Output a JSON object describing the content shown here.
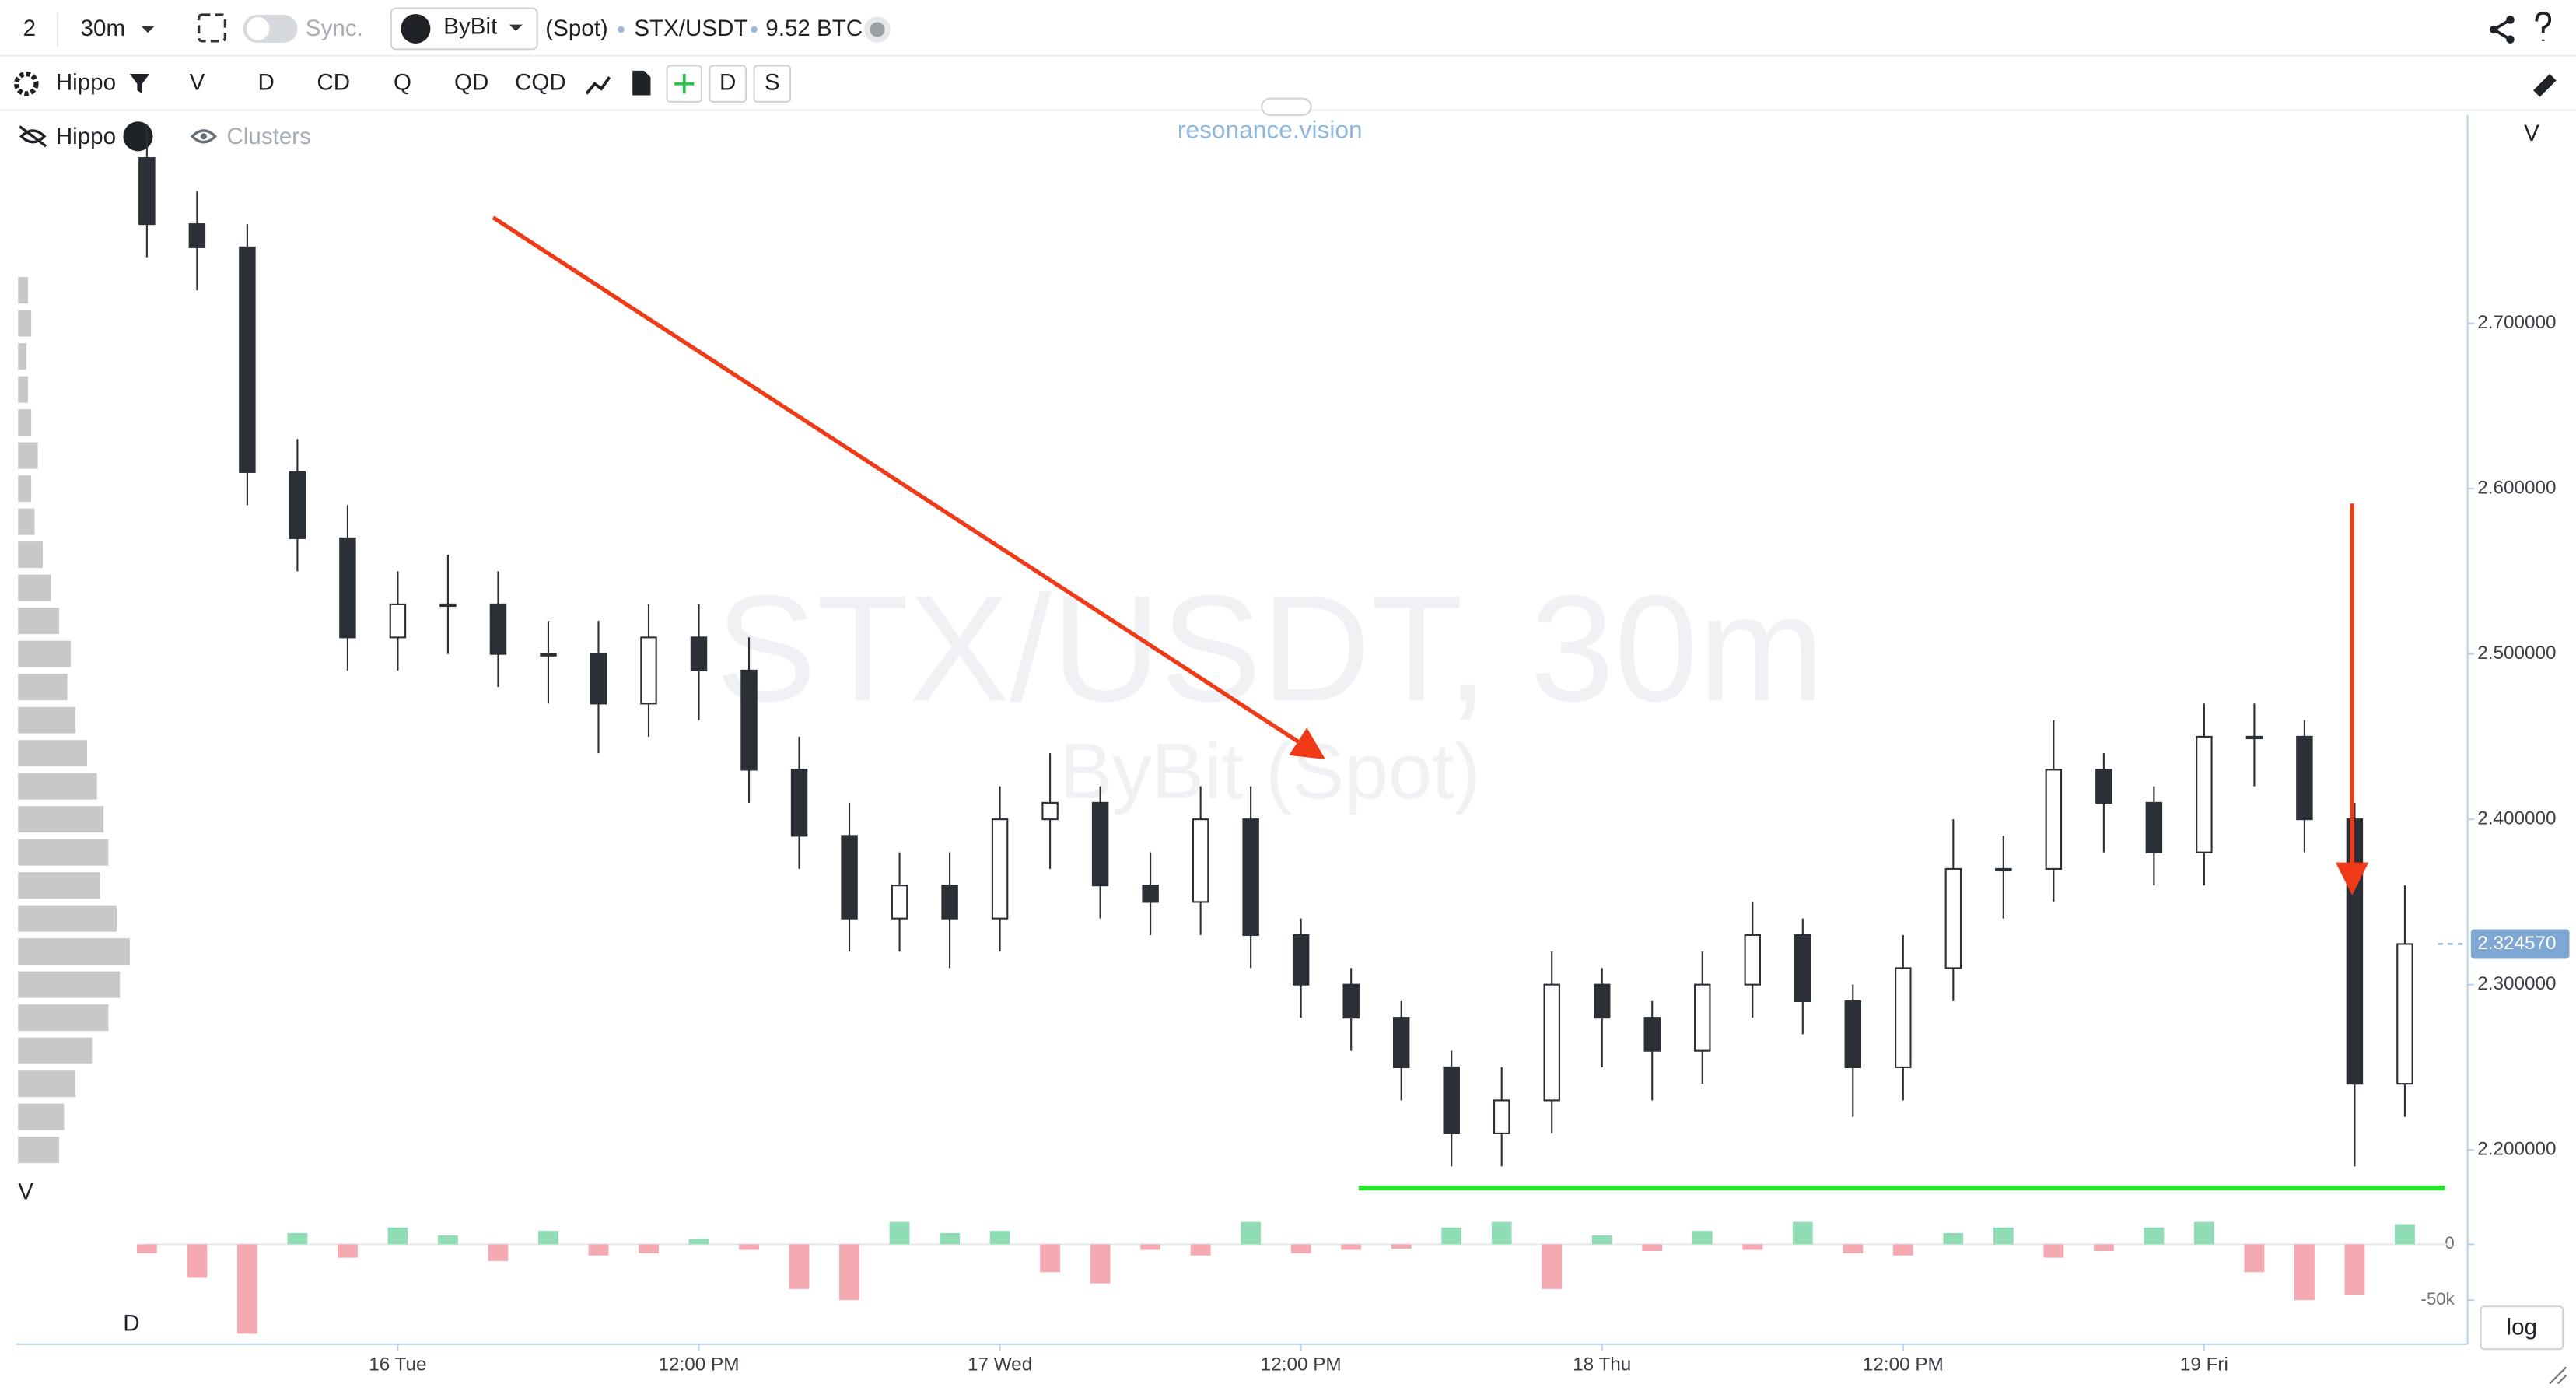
{
  "toolbar": {
    "layout_count": "2",
    "interval": "30m",
    "sync": "Sync.",
    "exchange": "ByBit",
    "market": "(Spot)",
    "symbol": "STX/USDT",
    "volume": "9.52 BTC",
    "indicators": [
      "Hippo",
      "V",
      "D",
      "CD",
      "Q",
      "QD",
      "CQD"
    ],
    "buttons": [
      "D",
      "S"
    ]
  },
  "legend": {
    "hippo": "Hippo",
    "clusters": "Clusters"
  },
  "brand": "resonance.vision",
  "watermark": {
    "main": "STX/USDT, 30m",
    "sub": "ByBit (Spot)"
  },
  "pane_labels": {
    "price_right": "V",
    "profile": "V",
    "delta": "D"
  },
  "log_button": "log",
  "chart_data": {
    "type": "candlestick",
    "x": [
      -10,
      -8,
      -6,
      -4,
      -2,
      0,
      2,
      4,
      6,
      8,
      10,
      12,
      14,
      16,
      18,
      20,
      22,
      24,
      26,
      28,
      30,
      32,
      34,
      36,
      38,
      40,
      42,
      44,
      46,
      48,
      50,
      52,
      54,
      56,
      58,
      60,
      62,
      64,
      66,
      68,
      70,
      72,
      74,
      76,
      78,
      80
    ],
    "open": [
      2.8,
      2.76,
      2.746,
      2.61,
      2.57,
      2.51,
      2.53,
      2.53,
      2.5,
      2.5,
      2.47,
      2.51,
      2.49,
      2.43,
      2.39,
      2.34,
      2.36,
      2.34,
      2.4,
      2.41,
      2.36,
      2.35,
      2.4,
      2.33,
      2.3,
      2.28,
      2.25,
      2.21,
      2.23,
      2.3,
      2.28,
      2.26,
      2.3,
      2.33,
      2.29,
      2.25,
      2.31,
      2.37,
      2.37,
      2.43,
      2.41,
      2.38,
      2.45,
      2.45,
      2.4,
      2.24
    ],
    "high": [
      2.82,
      2.78,
      2.76,
      2.63,
      2.59,
      2.55,
      2.56,
      2.55,
      2.52,
      2.52,
      2.53,
      2.53,
      2.51,
      2.45,
      2.41,
      2.38,
      2.38,
      2.42,
      2.44,
      2.42,
      2.38,
      2.42,
      2.42,
      2.34,
      2.31,
      2.29,
      2.26,
      2.25,
      2.32,
      2.31,
      2.29,
      2.32,
      2.35,
      2.34,
      2.3,
      2.33,
      2.4,
      2.39,
      2.46,
      2.44,
      2.42,
      2.47,
      2.47,
      2.46,
      2.41,
      2.36
    ],
    "low": [
      2.74,
      2.72,
      2.59,
      2.55,
      2.49,
      2.49,
      2.5,
      2.48,
      2.47,
      2.44,
      2.45,
      2.46,
      2.41,
      2.37,
      2.32,
      2.32,
      2.31,
      2.32,
      2.37,
      2.34,
      2.33,
      2.33,
      2.31,
      2.28,
      2.26,
      2.23,
      2.19,
      2.19,
      2.21,
      2.25,
      2.23,
      2.24,
      2.28,
      2.27,
      2.22,
      2.23,
      2.29,
      2.34,
      2.35,
      2.38,
      2.36,
      2.36,
      2.42,
      2.38,
      2.19,
      2.22
    ],
    "close": [
      2.76,
      2.746,
      2.61,
      2.57,
      2.51,
      2.53,
      2.53,
      2.5,
      2.5,
      2.47,
      2.51,
      2.49,
      2.43,
      2.39,
      2.34,
      2.36,
      2.34,
      2.4,
      2.41,
      2.36,
      2.35,
      2.4,
      2.33,
      2.3,
      2.28,
      2.25,
      2.21,
      2.23,
      2.3,
      2.28,
      2.26,
      2.3,
      2.33,
      2.29,
      2.25,
      2.31,
      2.37,
      2.37,
      2.43,
      2.41,
      2.38,
      2.45,
      2.45,
      2.4,
      2.24,
      2.32457
    ],
    "candle_color": "#2b2f36",
    "xlim": [
      -15.2,
      82.5
    ],
    "xticks": [
      {
        "value": 0,
        "label": "16 Tue"
      },
      {
        "value": 12,
        "label": "12:00 PM"
      },
      {
        "value": 24,
        "label": "17 Wed"
      },
      {
        "value": 36,
        "label": "12:00 PM"
      },
      {
        "value": 48,
        "label": "18 Thu"
      },
      {
        "value": 60,
        "label": "12:00 PM"
      },
      {
        "value": 72,
        "label": "19 Fri"
      }
    ],
    "ylim": [
      2.17,
      2.826
    ],
    "yticks": [
      {
        "value": 2.2,
        "label": "2.200000"
      },
      {
        "value": 2.3,
        "label": "2.300000"
      },
      {
        "value": 2.4,
        "label": "2.400000"
      },
      {
        "value": 2.5,
        "label": "2.500000"
      },
      {
        "value": 2.6,
        "label": "2.600000"
      },
      {
        "value": 2.7,
        "label": "2.700000"
      }
    ],
    "last_price": {
      "value": 2.32457,
      "label": "2.324570"
    },
    "delta": {
      "values": [
        -8000,
        -30000,
        -80000,
        10000,
        -12000,
        15000,
        8000,
        -15000,
        12000,
        -10000,
        -8000,
        5000,
        -5000,
        -40000,
        -50000,
        20000,
        10000,
        12000,
        -25000,
        -35000,
        -5000,
        -10000,
        20000,
        -8000,
        -5000,
        -4000,
        15000,
        20000,
        -40000,
        8000,
        -6000,
        12000,
        -5000,
        20000,
        -8000,
        -10000,
        10000,
        15000,
        -12000,
        -6000,
        15000,
        20000,
        -25000,
        -50000,
        -45000,
        18000
      ],
      "positive_color": "#8fdcb5",
      "negative_color": "#f5a9b0",
      "ylim": [
        -85000,
        40000
      ],
      "yticks": [
        {
          "value": 0,
          "label": "0"
        },
        {
          "value": -50000,
          "label": "-50k"
        }
      ]
    },
    "volume_profile": {
      "prices": [
        2.2,
        2.22,
        2.24,
        2.26,
        2.28,
        2.3,
        2.32,
        2.34,
        2.36,
        2.38,
        2.4,
        2.42,
        2.44,
        2.46,
        2.48,
        2.5,
        2.52,
        2.54,
        2.56,
        2.58,
        2.6,
        2.62,
        2.64,
        2.66,
        2.68,
        2.7,
        2.72
      ],
      "values": [
        25,
        28,
        35,
        45,
        55,
        62,
        68,
        60,
        50,
        55,
        52,
        48,
        42,
        35,
        30,
        32,
        25,
        20,
        15,
        10,
        8,
        12,
        8,
        6,
        5,
        8,
        6
      ],
      "color": "#c8c8c8"
    },
    "annotations": [
      {
        "type": "arrow",
        "color": "#f03a17",
        "x": [
          3.8,
          36.7
        ],
        "y": [
          2.764,
          2.439
        ]
      },
      {
        "type": "arrow",
        "color": "#f03a17",
        "x": [
          77.9,
          77.9
        ],
        "y": [
          2.591,
          2.359
        ]
      },
      {
        "type": "hline",
        "color": "#2ee02e",
        "x": [
          38.3,
          81.6
        ],
        "y": [
          2.177,
          2.177
        ]
      }
    ]
  }
}
